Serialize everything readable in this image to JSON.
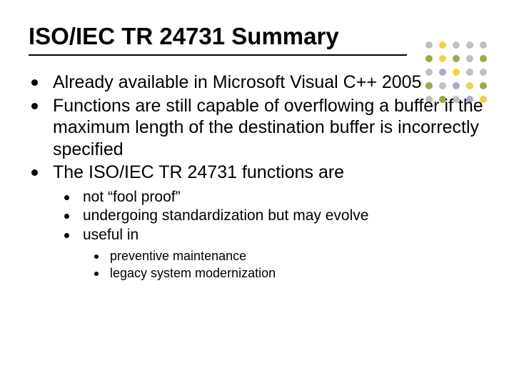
{
  "title": "ISO/IEC TR 24731 Summary",
  "bullets": {
    "lvl1": [
      "Already available in Microsoft Visual C++ 2005",
      "Functions are still capable of overflowing a buffer if the maximum length of the destination buffer is incorrectly specified",
      "The ISO/IEC TR 24731 functions are"
    ],
    "lvl2": [
      "not “fool proof”",
      "undergoing standardization but may evolve",
      "useful in"
    ],
    "lvl3": [
      "preventive maintenance",
      "legacy system modernization"
    ]
  },
  "title_underline_width": 530,
  "decor_dots": {
    "palette": {
      "yellow": "#f0d24a",
      "olive": "#9aa84f",
      "grey": "#bfbfbf",
      "lav": "#b6a6c9"
    },
    "grid": [
      [
        "grey",
        "yellow",
        "grey",
        "grey",
        "grey"
      ],
      [
        "olive",
        "yellow",
        "olive",
        "grey",
        "olive"
      ],
      [
        "grey",
        "lav",
        "yellow",
        "grey",
        "grey"
      ],
      [
        "olive",
        "grey",
        "lav",
        "yellow",
        "olive"
      ],
      [
        "grey",
        "olive",
        "grey",
        "lav",
        "yellow"
      ]
    ]
  },
  "fonts": {
    "title_size": 33,
    "lvl1_size": 25,
    "lvl2_size": 21,
    "lvl3_size": 18
  },
  "colors": {
    "text": "#000000",
    "background": "#ffffff",
    "underline": "#000000"
  }
}
